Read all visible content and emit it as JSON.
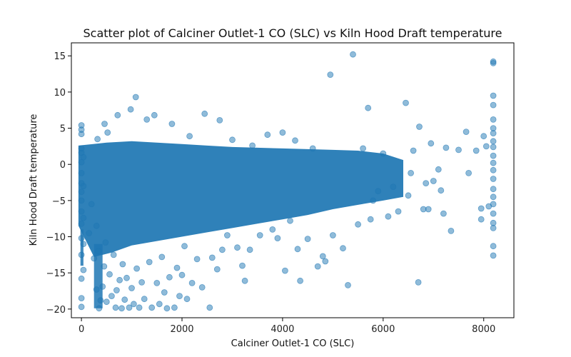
{
  "chart_data": {
    "type": "scatter",
    "title": "Scatter plot of Calciner Outlet-1 CO (SLC) vs Kiln Hood Draft temperature",
    "xlabel": "Calciner Outlet-1 CO (SLC)",
    "ylabel": "Kiln Hood Draft temperature",
    "xlim": [
      -200,
      8600
    ],
    "ylim": [
      -21.2,
      16.8
    ],
    "xticks": [
      0,
      2000,
      4000,
      6000,
      8000
    ],
    "yticks": [
      -20,
      -15,
      -10,
      -5,
      0,
      5,
      10,
      15
    ],
    "grid": false,
    "legend": "none",
    "marker_color": "#1f77b4",
    "marker_alpha": 0.5,
    "series": [
      {
        "points": [
          [
            0,
            -19.7
          ],
          [
            0,
            -18.5
          ],
          [
            0,
            -15.8
          ],
          [
            0,
            -12.5
          ],
          [
            0,
            -10.2
          ],
          [
            0,
            -8.2
          ],
          [
            0,
            -6.5
          ],
          [
            0,
            -5.0
          ],
          [
            0,
            -3.8
          ],
          [
            0,
            -2.6
          ],
          [
            0,
            -1.2
          ],
          [
            0,
            0.3
          ],
          [
            0,
            1.6
          ],
          [
            0,
            2.2
          ],
          [
            0,
            4.2
          ],
          [
            0,
            5.4
          ],
          [
            0,
            4.8
          ],
          [
            40,
            -14.6
          ],
          [
            40,
            -11.0
          ],
          [
            40,
            -7.4
          ],
          [
            40,
            -3.0
          ],
          [
            40,
            1.0
          ],
          [
            150,
            -9.5
          ],
          [
            200,
            -5.5
          ],
          [
            250,
            -13.0
          ],
          [
            300,
            -8.5
          ],
          [
            300,
            -17.3
          ],
          [
            320,
            3.5
          ],
          [
            340,
            -12.0
          ],
          [
            350,
            -19.9
          ],
          [
            380,
            -18.8
          ],
          [
            420,
            -16.9
          ],
          [
            450,
            -14.1
          ],
          [
            460,
            5.6
          ],
          [
            480,
            -10.8
          ],
          [
            500,
            -19.0
          ],
          [
            520,
            4.4
          ],
          [
            560,
            -15.2
          ],
          [
            600,
            -18.2
          ],
          [
            640,
            -12.5
          ],
          [
            680,
            -19.8
          ],
          [
            700,
            -17.4
          ],
          [
            720,
            6.8
          ],
          [
            760,
            -16.0
          ],
          [
            800,
            -19.9
          ],
          [
            820,
            -13.8
          ],
          [
            860,
            -18.7
          ],
          [
            900,
            -15.7
          ],
          [
            950,
            -19.8
          ],
          [
            980,
            7.6
          ],
          [
            1000,
            -17.1
          ],
          [
            1040,
            -19.3
          ],
          [
            1080,
            9.3
          ],
          [
            1100,
            -14.4
          ],
          [
            1150,
            -19.8
          ],
          [
            1200,
            -16.3
          ],
          [
            1250,
            -18.6
          ],
          [
            1300,
            6.2
          ],
          [
            1350,
            -13.5
          ],
          [
            1400,
            -19.8
          ],
          [
            1450,
            6.8
          ],
          [
            1500,
            -16.4
          ],
          [
            1550,
            -19.3
          ],
          [
            1600,
            -12.8
          ],
          [
            1650,
            -17.7
          ],
          [
            1700,
            -19.9
          ],
          [
            1750,
            -15.6
          ],
          [
            1800,
            5.6
          ],
          [
            1850,
            -19.8
          ],
          [
            1900,
            -14.3
          ],
          [
            1950,
            -18.2
          ],
          [
            2000,
            -15.3
          ],
          [
            2050,
            -11.3
          ],
          [
            2100,
            -18.6
          ],
          [
            2150,
            3.9
          ],
          [
            2200,
            -16.4
          ],
          [
            2300,
            -13.1
          ],
          [
            2400,
            -17.0
          ],
          [
            2450,
            7.0
          ],
          [
            2550,
            -19.8
          ],
          [
            2600,
            -12.9
          ],
          [
            2700,
            -14.5
          ],
          [
            2750,
            6.1
          ],
          [
            2800,
            -11.8
          ],
          [
            2900,
            -9.8
          ],
          [
            3000,
            3.4
          ],
          [
            3100,
            -11.5
          ],
          [
            3200,
            -14.0
          ],
          [
            3250,
            -16.1
          ],
          [
            3350,
            -11.8
          ],
          [
            3400,
            2.6
          ],
          [
            3550,
            -9.8
          ],
          [
            3700,
            4.1
          ],
          [
            3800,
            -9.0
          ],
          [
            3900,
            -10.2
          ],
          [
            4000,
            4.4
          ],
          [
            4050,
            -14.7
          ],
          [
            4150,
            -7.8
          ],
          [
            4250,
            3.3
          ],
          [
            4300,
            -11.7
          ],
          [
            4350,
            -16.1
          ],
          [
            4500,
            -10.3
          ],
          [
            4600,
            2.2
          ],
          [
            4700,
            -14.1
          ],
          [
            4800,
            -12.7
          ],
          [
            4850,
            -13.4
          ],
          [
            4950,
            12.4
          ],
          [
            5000,
            -9.8
          ],
          [
            5200,
            -11.6
          ],
          [
            5300,
            -16.7
          ],
          [
            5400,
            15.2
          ],
          [
            5500,
            -8.3
          ],
          [
            5600,
            2.2
          ],
          [
            5700,
            7.8
          ],
          [
            5750,
            -7.6
          ],
          [
            5800,
            -5.0
          ],
          [
            5900,
            -3.7
          ],
          [
            6000,
            1.5
          ],
          [
            6100,
            -7.2
          ],
          [
            6200,
            -3.1
          ],
          [
            6300,
            -6.5
          ],
          [
            6450,
            8.5
          ],
          [
            6500,
            -4.3
          ],
          [
            6550,
            -1.2
          ],
          [
            6600,
            1.9
          ],
          [
            6700,
            -16.3
          ],
          [
            6720,
            5.2
          ],
          [
            6800,
            -6.2
          ],
          [
            6850,
            -2.6
          ],
          [
            6900,
            -6.2
          ],
          [
            6950,
            2.9
          ],
          [
            7000,
            -2.3
          ],
          [
            7100,
            -0.7
          ],
          [
            7150,
            -3.6
          ],
          [
            7200,
            -6.8
          ],
          [
            7250,
            2.3
          ],
          [
            7350,
            -9.2
          ],
          [
            7500,
            2.0
          ],
          [
            7650,
            4.5
          ],
          [
            7700,
            -1.2
          ],
          [
            7850,
            1.9
          ],
          [
            7950,
            -7.6
          ],
          [
            7950,
            -6.1
          ],
          [
            8000,
            3.9
          ],
          [
            8050,
            2.5
          ],
          [
            8100,
            -5.8
          ],
          [
            8190,
            14.0
          ],
          [
            8190,
            14.2
          ],
          [
            8190,
            9.5
          ],
          [
            8190,
            8.2
          ],
          [
            8190,
            6.2
          ],
          [
            8190,
            5.0
          ],
          [
            8190,
            4.3
          ],
          [
            8190,
            3.2
          ],
          [
            8190,
            2.4
          ],
          [
            8190,
            1.2
          ],
          [
            8190,
            0.2
          ],
          [
            8190,
            -0.8
          ],
          [
            8190,
            -2.0
          ],
          [
            8190,
            -3.4
          ],
          [
            8190,
            -4.5
          ],
          [
            8190,
            -5.5
          ],
          [
            8190,
            -6.8
          ],
          [
            8190,
            -8.1
          ],
          [
            8190,
            -8.8
          ],
          [
            8190,
            -11.3
          ],
          [
            8190,
            -12.6
          ]
        ]
      }
    ]
  }
}
